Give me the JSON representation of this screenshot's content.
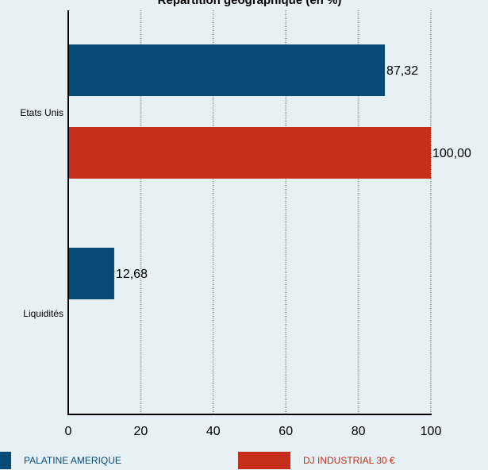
{
  "chart_data": {
    "type": "bar",
    "orientation": "horizontal",
    "title": "Répartition géographique (en %)",
    "categories": [
      "Etats Unis",
      "Liquidités"
    ],
    "series": [
      {
        "name": "PALATINE AMERIQUE",
        "color": "#064a78",
        "values": [
          87.32,
          12.68
        ],
        "labels": [
          "87,32",
          "12,68"
        ]
      },
      {
        "name": "DJ INDUSTRIAL 30 €",
        "color": "#c42e1a",
        "values": [
          100.0,
          null
        ],
        "labels": [
          "100,00",
          ""
        ]
      }
    ],
    "xlim": [
      0,
      100
    ],
    "xticks": [
      0,
      20,
      40,
      60,
      80,
      100
    ],
    "xtick_labels": [
      "0",
      "20",
      "40",
      "60",
      "80",
      "100"
    ],
    "grid": true,
    "legend_position": "bottom"
  }
}
